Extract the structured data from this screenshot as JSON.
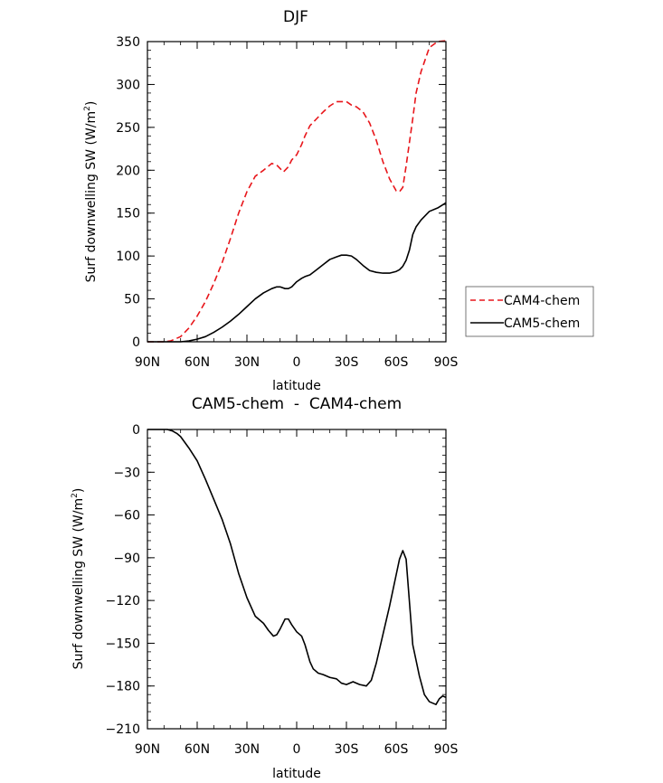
{
  "chart_data": [
    {
      "type": "line",
      "title": "DJF",
      "xlabel": "latitude",
      "ylabel": "Surf downwelling SW (W/m",
      "ylabel_sup": "2",
      "ylabel_close": ")",
      "xlim": [
        -90,
        90
      ],
      "ylim": [
        0,
        350
      ],
      "x_ticks": [
        -90,
        -60,
        -30,
        0,
        30,
        60,
        90
      ],
      "x_tick_labels": [
        "90N",
        "60N",
        "30N",
        "0",
        "30S",
        "60S",
        "90S"
      ],
      "y_ticks": [
        0,
        50,
        100,
        150,
        200,
        250,
        300,
        350
      ],
      "y_tick_labels": [
        "0",
        "50",
        "100",
        "150",
        "200",
        "250",
        "300",
        "350"
      ],
      "legend_position": "right",
      "series": [
        {
          "name": "CAM4-chem",
          "color": "#e8161b",
          "dash": "dashed",
          "x": [
            -90,
            -80,
            -76,
            -70,
            -65,
            -60,
            -55,
            -50,
            -45,
            -40,
            -35,
            -30,
            -25,
            -20,
            -15,
            -12,
            -8,
            -5,
            -3,
            0,
            3,
            5,
            8,
            12,
            16,
            20,
            24,
            27,
            30,
            33,
            36,
            40,
            44,
            48,
            52,
            56,
            60,
            62,
            64,
            66,
            70,
            72,
            75,
            80,
            85,
            90
          ],
          "y": [
            0,
            0,
            1,
            6,
            16,
            30,
            47,
            68,
            92,
            120,
            150,
            175,
            193,
            200,
            208,
            206,
            198,
            204,
            212,
            218,
            230,
            240,
            252,
            260,
            268,
            275,
            280,
            280,
            280,
            276,
            274,
            268,
            255,
            235,
            210,
            190,
            176,
            175,
            180,
            205,
            260,
            290,
            315,
            343,
            350,
            351
          ]
        },
        {
          "name": "CAM5-chem",
          "color": "#000000",
          "dash": "solid",
          "x": [
            -90,
            -80,
            -75,
            -70,
            -65,
            -60,
            -55,
            -50,
            -45,
            -40,
            -35,
            -30,
            -25,
            -20,
            -15,
            -12,
            -10,
            -7,
            -5,
            -3,
            0,
            3,
            5,
            8,
            12,
            16,
            20,
            24,
            27,
            30,
            33,
            36,
            40,
            44,
            48,
            52,
            56,
            60,
            62,
            64,
            66,
            68,
            70,
            72,
            75,
            80,
            85,
            90
          ],
          "y": [
            0,
            0,
            0,
            0,
            1,
            3,
            6,
            11,
            17,
            24,
            32,
            41,
            50,
            57,
            62,
            64,
            64,
            62,
            62,
            64,
            70,
            74,
            76,
            78,
            84,
            90,
            96,
            99,
            101,
            101,
            100,
            96,
            89,
            83,
            81,
            80,
            80,
            82,
            84,
            88,
            95,
            107,
            125,
            134,
            142,
            152,
            156,
            162
          ]
        }
      ]
    },
    {
      "type": "line",
      "title": "CAM5-chem  -  CAM4-chem",
      "xlabel": "latitude",
      "ylabel": "Surf downwelling SW (W/m",
      "ylabel_sup": "2",
      "ylabel_close": ")",
      "xlim": [
        -90,
        90
      ],
      "ylim": [
        -210,
        0
      ],
      "x_ticks": [
        -90,
        -60,
        -30,
        0,
        30,
        60,
        90
      ],
      "x_tick_labels": [
        "90N",
        "60N",
        "30N",
        "0",
        "30S",
        "60S",
        "90S"
      ],
      "y_ticks": [
        0,
        -30,
        -60,
        -90,
        -120,
        -150,
        -180,
        -210
      ],
      "y_tick_labels": [
        "0",
        "−30",
        "−60",
        "−90",
        "−120",
        "−150",
        "−180",
        "−210"
      ],
      "series": [
        {
          "name": "CAM5-chem - CAM4-chem",
          "color": "#000000",
          "dash": "solid",
          "x": [
            -90,
            -82,
            -78,
            -75,
            -72,
            -70,
            -65,
            -60,
            -55,
            -50,
            -45,
            -40,
            -35,
            -30,
            -25,
            -20,
            -17,
            -14,
            -12,
            -10,
            -7,
            -5,
            -3,
            0,
            3,
            5,
            8,
            10,
            13,
            16,
            20,
            24,
            27,
            30,
            34,
            38,
            42,
            45,
            48,
            52,
            56,
            60,
            62,
            64,
            66,
            70,
            74,
            77,
            80,
            84,
            86,
            88,
            90
          ],
          "y": [
            0,
            0,
            0,
            -1,
            -3,
            -5,
            -13,
            -22,
            -35,
            -49,
            -63,
            -80,
            -101,
            -118,
            -131,
            -136,
            -141,
            -145,
            -144,
            -140,
            -133,
            -133,
            -137,
            -142,
            -145,
            -151,
            -163,
            -168,
            -171,
            -172,
            -174,
            -175,
            -178,
            -179,
            -177,
            -179,
            -180,
            -176,
            -164,
            -144,
            -124,
            -102,
            -91,
            -85,
            -91,
            -151,
            -173,
            -186,
            -191,
            -193,
            -189,
            -187,
            -188
          ]
        }
      ]
    }
  ]
}
